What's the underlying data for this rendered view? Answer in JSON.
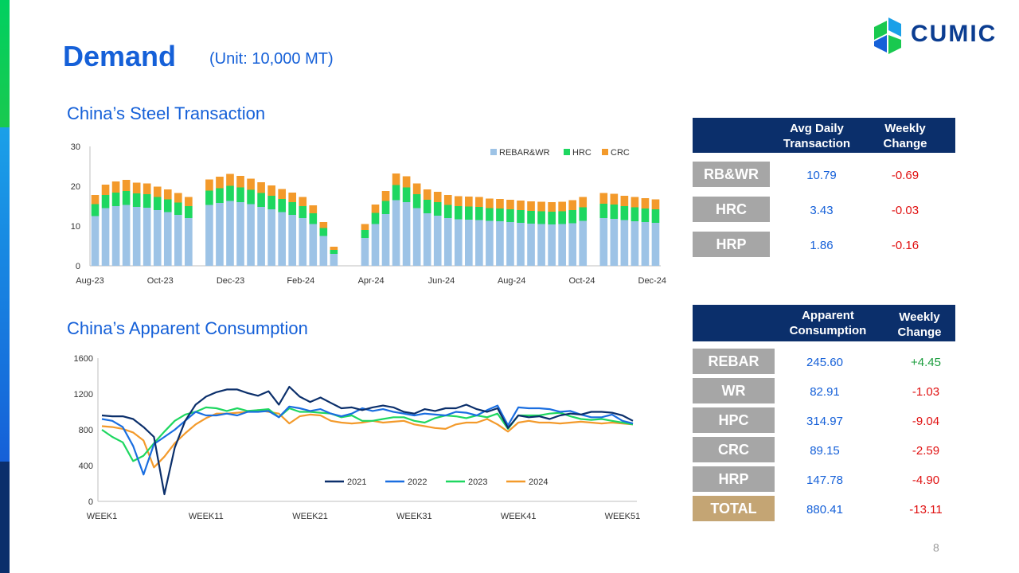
{
  "header": {
    "title": "Demand",
    "unit": "(Unit: 10,000 MT)",
    "logo_text": "CUMIC",
    "page_number": "8"
  },
  "colors": {
    "brand_blue": "#1560d8",
    "navy": "#0b2f6b",
    "row_gray": "#a6a6a6",
    "total_tan": "#c4a574",
    "negative": "#e01010",
    "positive": "#1a9c3c"
  },
  "sections": {
    "transaction_title": "China’s Steel Transaction",
    "consumption_title": "China’s Apparent Consumption"
  },
  "transaction_table": {
    "header_col1": "Avg Daily Transaction",
    "header_col2": "Weekly Change",
    "rows": [
      {
        "label": "RB&WR",
        "value": "10.79",
        "change": "-0.69",
        "dir": "neg"
      },
      {
        "label": "HRC",
        "value": "3.43",
        "change": "-0.03",
        "dir": "neg"
      },
      {
        "label": "HRP",
        "value": "1.86",
        "change": "-0.16",
        "dir": "neg"
      }
    ]
  },
  "consumption_table": {
    "header_col1": "Apparent Consumption",
    "header_col2": "Weekly Change",
    "rows": [
      {
        "label": "REBAR",
        "value": "245.60",
        "change": "+4.45",
        "dir": "pos"
      },
      {
        "label": "WR",
        "value": "82.91",
        "change": "-1.03",
        "dir": "neg"
      },
      {
        "label": "HPC",
        "value": "314.97",
        "change": "-9.04",
        "dir": "neg"
      },
      {
        "label": "CRC",
        "value": "89.15",
        "change": "-2.59",
        "dir": "neg"
      },
      {
        "label": "HRP",
        "value": "147.78",
        "change": "-4.90",
        "dir": "neg"
      },
      {
        "label": "TOTAL",
        "value": "880.41",
        "change": "-13.11",
        "dir": "neg"
      }
    ]
  },
  "chart_data": [
    {
      "type": "bar",
      "stacked": true,
      "grid": false,
      "legend_position": "top-right",
      "ylim": [
        0,
        30
      ],
      "yticks": [
        0,
        10,
        20,
        30
      ],
      "x_tick_labels": [
        "Aug-23",
        "Oct-23",
        "Dec-23",
        "Feb-24",
        "Apr-24",
        "Jun-24",
        "Aug-24",
        "Oct-24",
        "Dec-24"
      ],
      "series": [
        {
          "name": "REBAR&WR",
          "color": "#9dc3e6",
          "values": [
            12.5,
            14.5,
            15.0,
            15.3,
            14.8,
            14.6,
            14.0,
            13.5,
            12.8,
            12.0,
            0,
            15.3,
            15.8,
            16.3,
            16.0,
            15.5,
            14.8,
            14.2,
            13.5,
            12.8,
            12.0,
            10.5,
            7.5,
            3.0,
            0,
            0,
            7.0,
            10.5,
            13.0,
            16.5,
            16.0,
            14.5,
            13.2,
            12.6,
            12.0,
            11.7,
            11.6,
            11.5,
            11.3,
            11.2,
            11.0,
            10.8,
            10.6,
            10.5,
            10.4,
            10.5,
            10.7,
            11.3,
            0,
            12.0,
            11.8,
            11.5,
            11.2,
            11.0,
            10.8
          ]
        },
        {
          "name": "HRC",
          "color": "#1ed760",
          "values": [
            3.0,
            3.3,
            3.4,
            3.5,
            3.4,
            3.4,
            3.3,
            3.2,
            3.1,
            3.0,
            0,
            3.6,
            3.7,
            3.8,
            3.7,
            3.6,
            3.5,
            3.4,
            3.3,
            3.2,
            3.0,
            2.7,
            2.0,
            1.0,
            0,
            0,
            2.0,
            2.8,
            3.3,
            3.8,
            3.7,
            3.5,
            3.4,
            3.4,
            3.3,
            3.3,
            3.3,
            3.3,
            3.2,
            3.2,
            3.2,
            3.2,
            3.2,
            3.2,
            3.2,
            3.2,
            3.3,
            3.4,
            0,
            3.6,
            3.6,
            3.5,
            3.5,
            3.4,
            3.4
          ]
        },
        {
          "name": "CRC",
          "color": "#f39a2b",
          "values": [
            2.3,
            2.6,
            2.8,
            2.8,
            2.7,
            2.7,
            2.6,
            2.5,
            2.4,
            2.3,
            0,
            2.8,
            2.9,
            3.0,
            2.9,
            2.8,
            2.7,
            2.6,
            2.5,
            2.4,
            2.3,
            2.0,
            1.5,
            0.8,
            0,
            0,
            1.5,
            2.1,
            2.5,
            2.9,
            2.8,
            2.7,
            2.6,
            2.6,
            2.5,
            2.5,
            2.5,
            2.5,
            2.4,
            2.4,
            2.4,
            2.4,
            2.4,
            2.4,
            2.4,
            2.4,
            2.5,
            2.6,
            0,
            2.7,
            2.7,
            2.6,
            2.6,
            2.6,
            2.5
          ]
        }
      ]
    },
    {
      "type": "line",
      "grid": false,
      "legend_position": "bottom-right",
      "ylim": [
        0,
        1600
      ],
      "yticks": [
        0,
        400,
        800,
        1200,
        1600
      ],
      "x": [
        1,
        2,
        3,
        4,
        5,
        6,
        7,
        8,
        9,
        10,
        11,
        12,
        13,
        14,
        15,
        16,
        17,
        18,
        19,
        20,
        21,
        22,
        23,
        24,
        25,
        26,
        27,
        28,
        29,
        30,
        31,
        32,
        33,
        34,
        35,
        36,
        37,
        38,
        39,
        40,
        41,
        42,
        43,
        44,
        45,
        46,
        47,
        48,
        49,
        50,
        51,
        52
      ],
      "x_tick_values": [
        1,
        11,
        21,
        31,
        41,
        51
      ],
      "x_tick_labels": [
        "WEEK1",
        "WEEK11",
        "WEEK21",
        "WEEK31",
        "WEEK41",
        "WEEK51"
      ],
      "series": [
        {
          "name": "2021",
          "color": "#0b2f6b",
          "values": [
            960,
            950,
            950,
            920,
            830,
            720,
            80,
            600,
            900,
            1080,
            1170,
            1220,
            1250,
            1250,
            1210,
            1180,
            1230,
            1080,
            1280,
            1170,
            1110,
            1160,
            1100,
            1040,
            1050,
            1020,
            1050,
            1070,
            1050,
            1000,
            980,
            1030,
            1010,
            1040,
            1040,
            1080,
            1030,
            1000,
            1040,
            820,
            960,
            940,
            950,
            920,
            960,
            980,
            970,
            1000,
            1000,
            990,
            960,
            900
          ]
        },
        {
          "name": "2022",
          "color": "#1a6ee0",
          "values": [
            920,
            900,
            830,
            620,
            300,
            640,
            720,
            800,
            900,
            1000,
            960,
            960,
            980,
            960,
            1000,
            1000,
            1010,
            940,
            1060,
            1040,
            1010,
            1030,
            980,
            950,
            980,
            1040,
            1010,
            1030,
            1000,
            980,
            960,
            980,
            970,
            960,
            1000,
            990,
            960,
            1020,
            1070,
            850,
            1050,
            1040,
            1040,
            1030,
            1000,
            1010,
            970,
            940,
            940,
            970,
            900,
            870
          ]
        },
        {
          "name": "2023",
          "color": "#1ed760",
          "values": [
            800,
            720,
            660,
            450,
            510,
            650,
            780,
            900,
            970,
            1000,
            1050,
            1040,
            1010,
            1040,
            1010,
            1020,
            1030,
            940,
            1040,
            1000,
            1000,
            990,
            980,
            940,
            960,
            900,
            900,
            920,
            940,
            940,
            900,
            880,
            930,
            960,
            950,
            930,
            960,
            940,
            980,
            810,
            960,
            960,
            960,
            980,
            990,
            950,
            920,
            910,
            920,
            900,
            880,
            860
          ]
        },
        {
          "name": "2024",
          "color": "#f39a2b",
          "values": [
            840,
            830,
            810,
            770,
            680,
            380,
            500,
            650,
            760,
            860,
            930,
            980,
            980,
            990,
            1000,
            1020,
            1000,
            980,
            870,
            950,
            970,
            960,
            900,
            880,
            870,
            880,
            900,
            880,
            890,
            900,
            860,
            840,
            820,
            810,
            860,
            880,
            880,
            920,
            860,
            780,
            880,
            900,
            880,
            880,
            870,
            880,
            890,
            880,
            870,
            880,
            870,
            860
          ]
        }
      ]
    }
  ]
}
